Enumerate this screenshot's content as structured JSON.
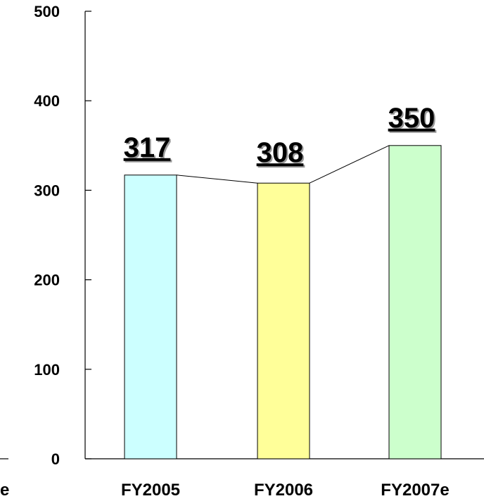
{
  "chart_data": {
    "type": "bar",
    "title": "",
    "xlabel": "",
    "ylabel": "",
    "categories": [
      "FY2005",
      "FY2006",
      "FY2007e"
    ],
    "series": [
      {
        "values": [
          317,
          308,
          350
        ]
      }
    ],
    "data_labels": [
      "317",
      "308",
      "350"
    ],
    "ylim": [
      0,
      500
    ],
    "y_ticks": [
      "0",
      "100",
      "200",
      "300",
      "400",
      "500"
    ],
    "grid": false,
    "connector_line": true,
    "partial_left_label": "e",
    "bar_colors": [
      "#ccffff",
      "#ffff99",
      "#ccffcc"
    ],
    "bar_stroke": "#000000"
  }
}
